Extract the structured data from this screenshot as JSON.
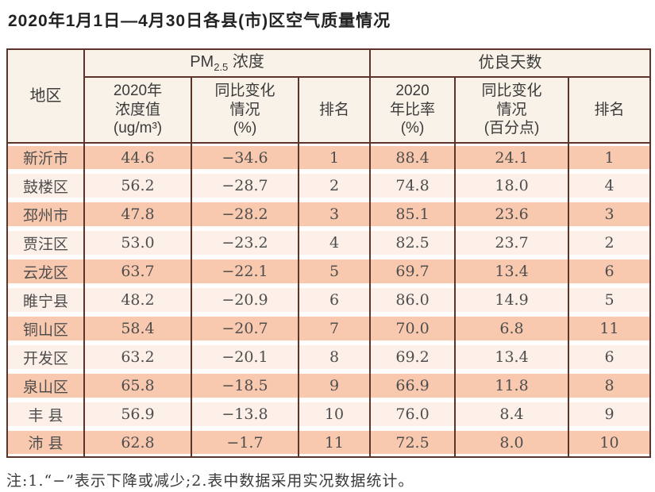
{
  "title": "2020年1月1日—4月30日各县(市)区空气质量情况",
  "note": "注:1.“−”表示下降或减少;2.表中数据采用实况数据统计。",
  "colors": {
    "border": "#5d342b",
    "row_salmon": "#f8c9ae",
    "row_light": "#fdf0e8",
    "header_bg": "#f9f2e8"
  },
  "table": {
    "region_header": "地区",
    "pm_group": {
      "prefix": "PM",
      "sub": "2.5",
      "suffix": " 浓度"
    },
    "good_group": "优良天数",
    "sub_headers": {
      "pm_value": "2020年\n浓度值\n(ug/m³)",
      "pm_change": "同比变化\n情况\n(%)",
      "pm_rank": "排名",
      "good_ratio": "2020\n年比率\n(%)",
      "good_change": "同比变化\n情况\n(百分点)",
      "good_rank": "排名"
    },
    "rows": [
      {
        "region": "新沂市",
        "pm_value": "44.6",
        "pm_change": "−34.6",
        "pm_rank": "1",
        "good_ratio": "88.4",
        "good_change": "24.1",
        "good_rank": "1"
      },
      {
        "region": "鼓楼区",
        "pm_value": "56.2",
        "pm_change": "−28.7",
        "pm_rank": "2",
        "good_ratio": "74.8",
        "good_change": "18.0",
        "good_rank": "4"
      },
      {
        "region": "邳州市",
        "pm_value": "47.8",
        "pm_change": "−28.2",
        "pm_rank": "3",
        "good_ratio": "85.1",
        "good_change": "23.6",
        "good_rank": "3"
      },
      {
        "region": "贾汪区",
        "pm_value": "53.0",
        "pm_change": "−23.2",
        "pm_rank": "4",
        "good_ratio": "82.5",
        "good_change": "23.7",
        "good_rank": "2"
      },
      {
        "region": "云龙区",
        "pm_value": "63.7",
        "pm_change": "−22.1",
        "pm_rank": "5",
        "good_ratio": "69.7",
        "good_change": "13.4",
        "good_rank": "6"
      },
      {
        "region": "睢宁县",
        "pm_value": "48.2",
        "pm_change": "−20.9",
        "pm_rank": "6",
        "good_ratio": "86.0",
        "good_change": "14.9",
        "good_rank": "5"
      },
      {
        "region": "铜山区",
        "pm_value": "58.4",
        "pm_change": "−20.7",
        "pm_rank": "7",
        "good_ratio": "70.0",
        "good_change": "6.8",
        "good_rank": "11"
      },
      {
        "region": "开发区",
        "pm_value": "63.2",
        "pm_change": "−20.1",
        "pm_rank": "8",
        "good_ratio": "69.2",
        "good_change": "13.4",
        "good_rank": "6"
      },
      {
        "region": "泉山区",
        "pm_value": "65.8",
        "pm_change": "−18.5",
        "pm_rank": "9",
        "good_ratio": "66.9",
        "good_change": "11.8",
        "good_rank": "8"
      },
      {
        "region": "丰 县",
        "pm_value": "56.9",
        "pm_change": "−13.8",
        "pm_rank": "10",
        "good_ratio": "76.0",
        "good_change": "8.4",
        "good_rank": "9"
      },
      {
        "region": "沛 县",
        "pm_value": "62.8",
        "pm_change": "−1.7",
        "pm_rank": "11",
        "good_ratio": "72.5",
        "good_change": "8.0",
        "good_rank": "10"
      }
    ]
  }
}
